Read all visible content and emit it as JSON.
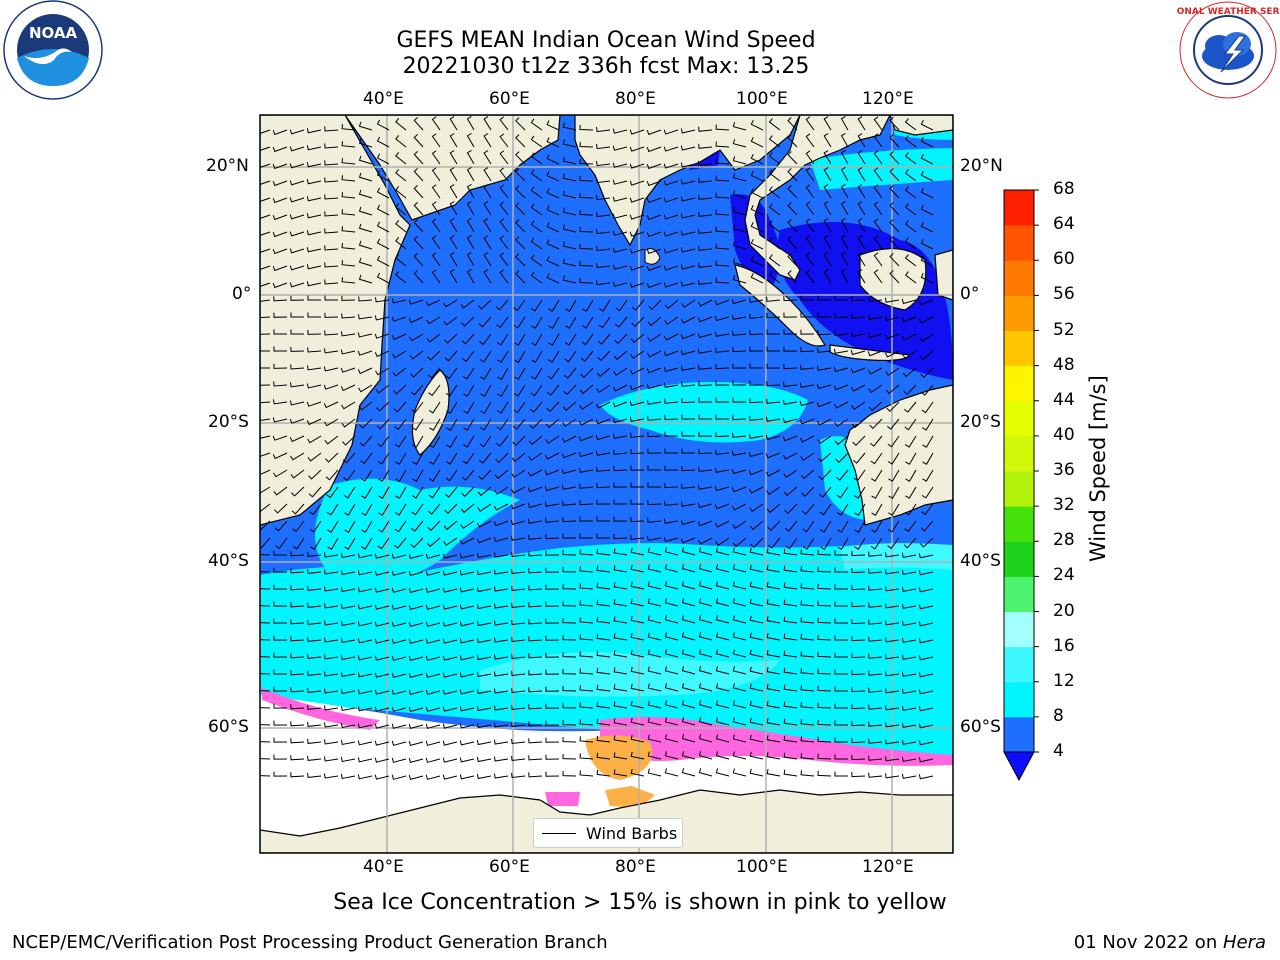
{
  "title": {
    "line1": "GEFS MEAN Indian Ocean Wind Speed",
    "line2": "20221030 t12z 336h fcst   Max: 13.25"
  },
  "logos": {
    "left": "NOAA",
    "right": "NATIONAL WEATHER SERVICE"
  },
  "map": {
    "lon_ticks": [
      "40°E",
      "60°E",
      "80°E",
      "100°E",
      "120°E"
    ],
    "lat_ticks": [
      "20°N",
      "0°",
      "20°S",
      "40°S",
      "60°S"
    ],
    "legend_label": "Wind Barbs"
  },
  "colorbar": {
    "label": "Wind Speed [m/s]",
    "levels": [
      "4",
      "8",
      "12",
      "16",
      "20",
      "24",
      "28",
      "32",
      "36",
      "40",
      "44",
      "48",
      "52",
      "56",
      "60",
      "64",
      "68"
    ],
    "colors": [
      "#1e6fff",
      "#00f5ff",
      "#3ef8ff",
      "#a3fffb",
      "#4df26e",
      "#1fd21b",
      "#45e10b",
      "#b3f20b",
      "#d1f80b",
      "#e3ff00",
      "#fff500",
      "#ffc600",
      "#ff9b00",
      "#ff7800",
      "#ff5500",
      "#ff2000"
    ],
    "under_color": "#0d0dff"
  },
  "palette": {
    "land": "#efefdb",
    "ocean_dark": "#1e6fff",
    "ocean_darkest": "#1010f0",
    "ocean_cyan": "#00f5ff",
    "ocean_lightcyan": "#40f8ff",
    "ice_pink": "#ff66e0",
    "ice_orange": "#fcb045",
    "ice_white": "#ffffff"
  },
  "caption": "Sea Ice Concentration > 15% is shown in pink to yellow",
  "footer": {
    "left": "NCEP/EMC/Verification Post Processing Product Generation Branch",
    "right_date": "01 Nov 2022 on ",
    "right_machine": "Hera"
  }
}
